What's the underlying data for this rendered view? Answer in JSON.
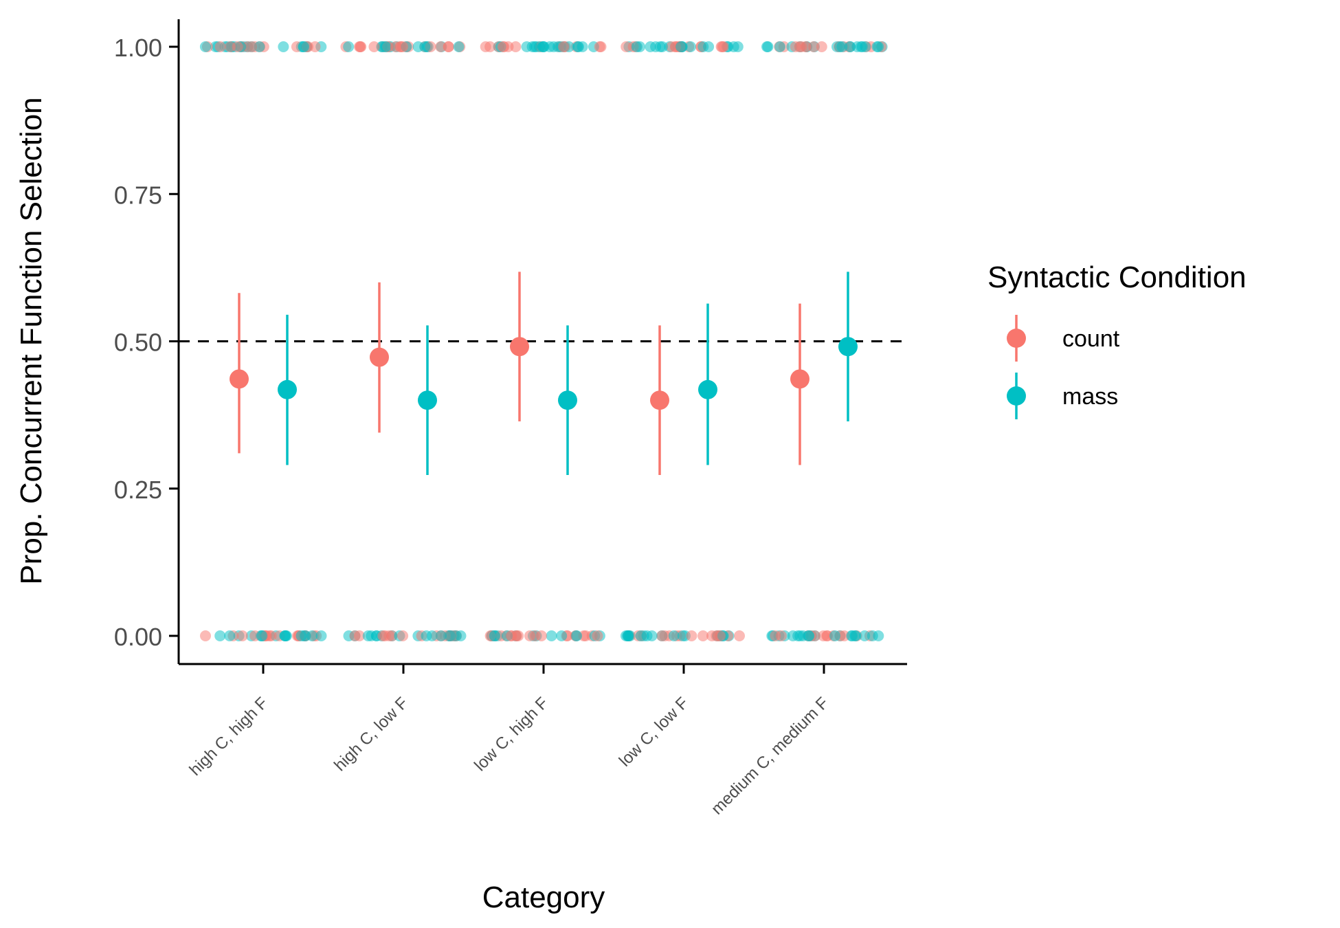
{
  "chart_data": {
    "type": "scatter",
    "xlabel": "Category",
    "ylabel": "Prop. Concurrent Function Selection",
    "categories": [
      "high C, high F",
      "high C, low F",
      "low C, high F",
      "low C, low F",
      "medium C, medium F"
    ],
    "ylim": [
      0,
      1
    ],
    "yticks": [
      0.0,
      0.25,
      0.5,
      0.75,
      1.0
    ],
    "ytick_labels": [
      "0.00",
      "0.25",
      "0.50",
      "0.75",
      "1.00"
    ],
    "reference_line": {
      "y": 0.5,
      "style": "dashed",
      "color": "#000000"
    },
    "grid": false,
    "legend": {
      "title": "Syntactic Condition",
      "position": "right",
      "entries": [
        {
          "label": "count",
          "color": "#F8766D"
        },
        {
          "label": "mass",
          "color": "#00BFC4"
        }
      ]
    },
    "series": [
      {
        "name": "count",
        "color": "#F8766D",
        "mean": [
          0.436,
          0.473,
          0.491,
          0.4,
          0.436
        ],
        "ci_low": [
          0.31,
          0.345,
          0.364,
          0.273,
          0.29
        ],
        "ci_high": [
          0.582,
          0.6,
          0.618,
          0.527,
          0.564
        ]
      },
      {
        "name": "mass",
        "color": "#00BFC4",
        "mean": [
          0.418,
          0.4,
          0.4,
          0.418,
          0.491
        ],
        "ci_low": [
          0.29,
          0.273,
          0.273,
          0.29,
          0.364
        ],
        "ci_high": [
          0.545,
          0.527,
          0.527,
          0.564,
          0.618
        ]
      }
    ],
    "raw_points": {
      "values": [
        0,
        1
      ],
      "jitter": true,
      "alpha": 0.5
    }
  }
}
